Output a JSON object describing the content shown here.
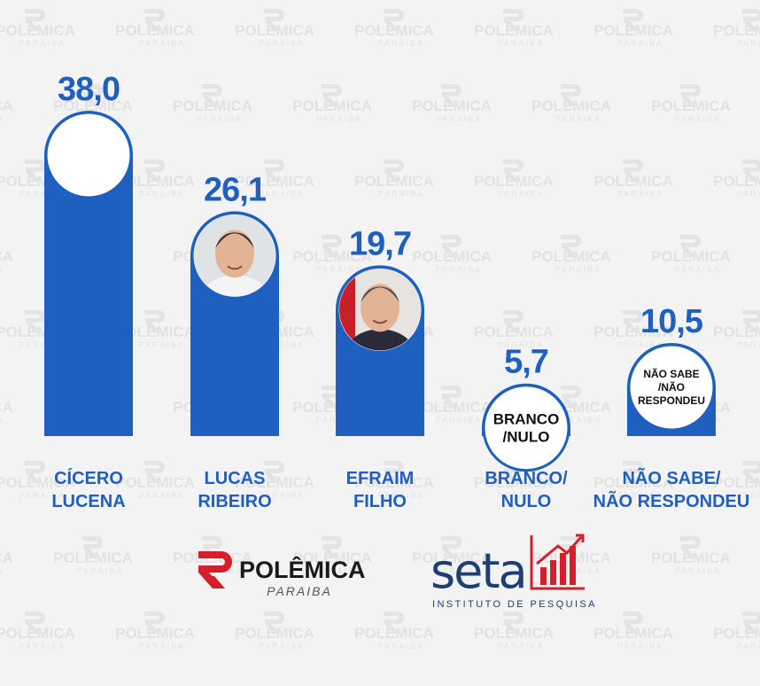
{
  "chart_data": {
    "type": "bar",
    "categories": [
      [
        "CÍCERO",
        "LUCENA"
      ],
      [
        "LUCAS",
        "RIBEIRO"
      ],
      [
        "EFRAIM",
        "FILHO"
      ],
      [
        "BRANCO/",
        "NULO"
      ],
      [
        "NÃO SABE/",
        "NÃO RESPONDEU"
      ]
    ],
    "values": [
      38.0,
      26.1,
      19.7,
      5.7,
      10.5
    ],
    "value_labels": [
      "38,0",
      "26,1",
      "19,7",
      "5,7",
      "10,5"
    ],
    "badges": [
      {
        "kind": "photo"
      },
      {
        "kind": "photo"
      },
      {
        "kind": "photo"
      },
      {
        "kind": "text",
        "lines": [
          "BRANCO",
          "/NULO"
        ]
      },
      {
        "kind": "text",
        "lines": [
          "NÃO SABE",
          "/NÃO",
          "RESPONDEU"
        ]
      }
    ],
    "ylim": [
      0,
      38.0
    ],
    "grid": false,
    "bar_color": "#1f5fbf",
    "label_color": "#1f5fbf",
    "badge_border": "#1f5fbf"
  },
  "watermark": {
    "title": "POLÊMICA",
    "subtitle": "PARAIBA"
  },
  "logos": {
    "polemica": {
      "title": "POLÊMICA",
      "subtitle": "PARAIBA",
      "accent": "#d61f2c",
      "color": "#1a1a1a"
    },
    "seta": {
      "name": "seta",
      "subtitle": "INSTITUTO DE PESQUISA",
      "color": "#1e3f73",
      "accent": "#d61f2c"
    }
  }
}
